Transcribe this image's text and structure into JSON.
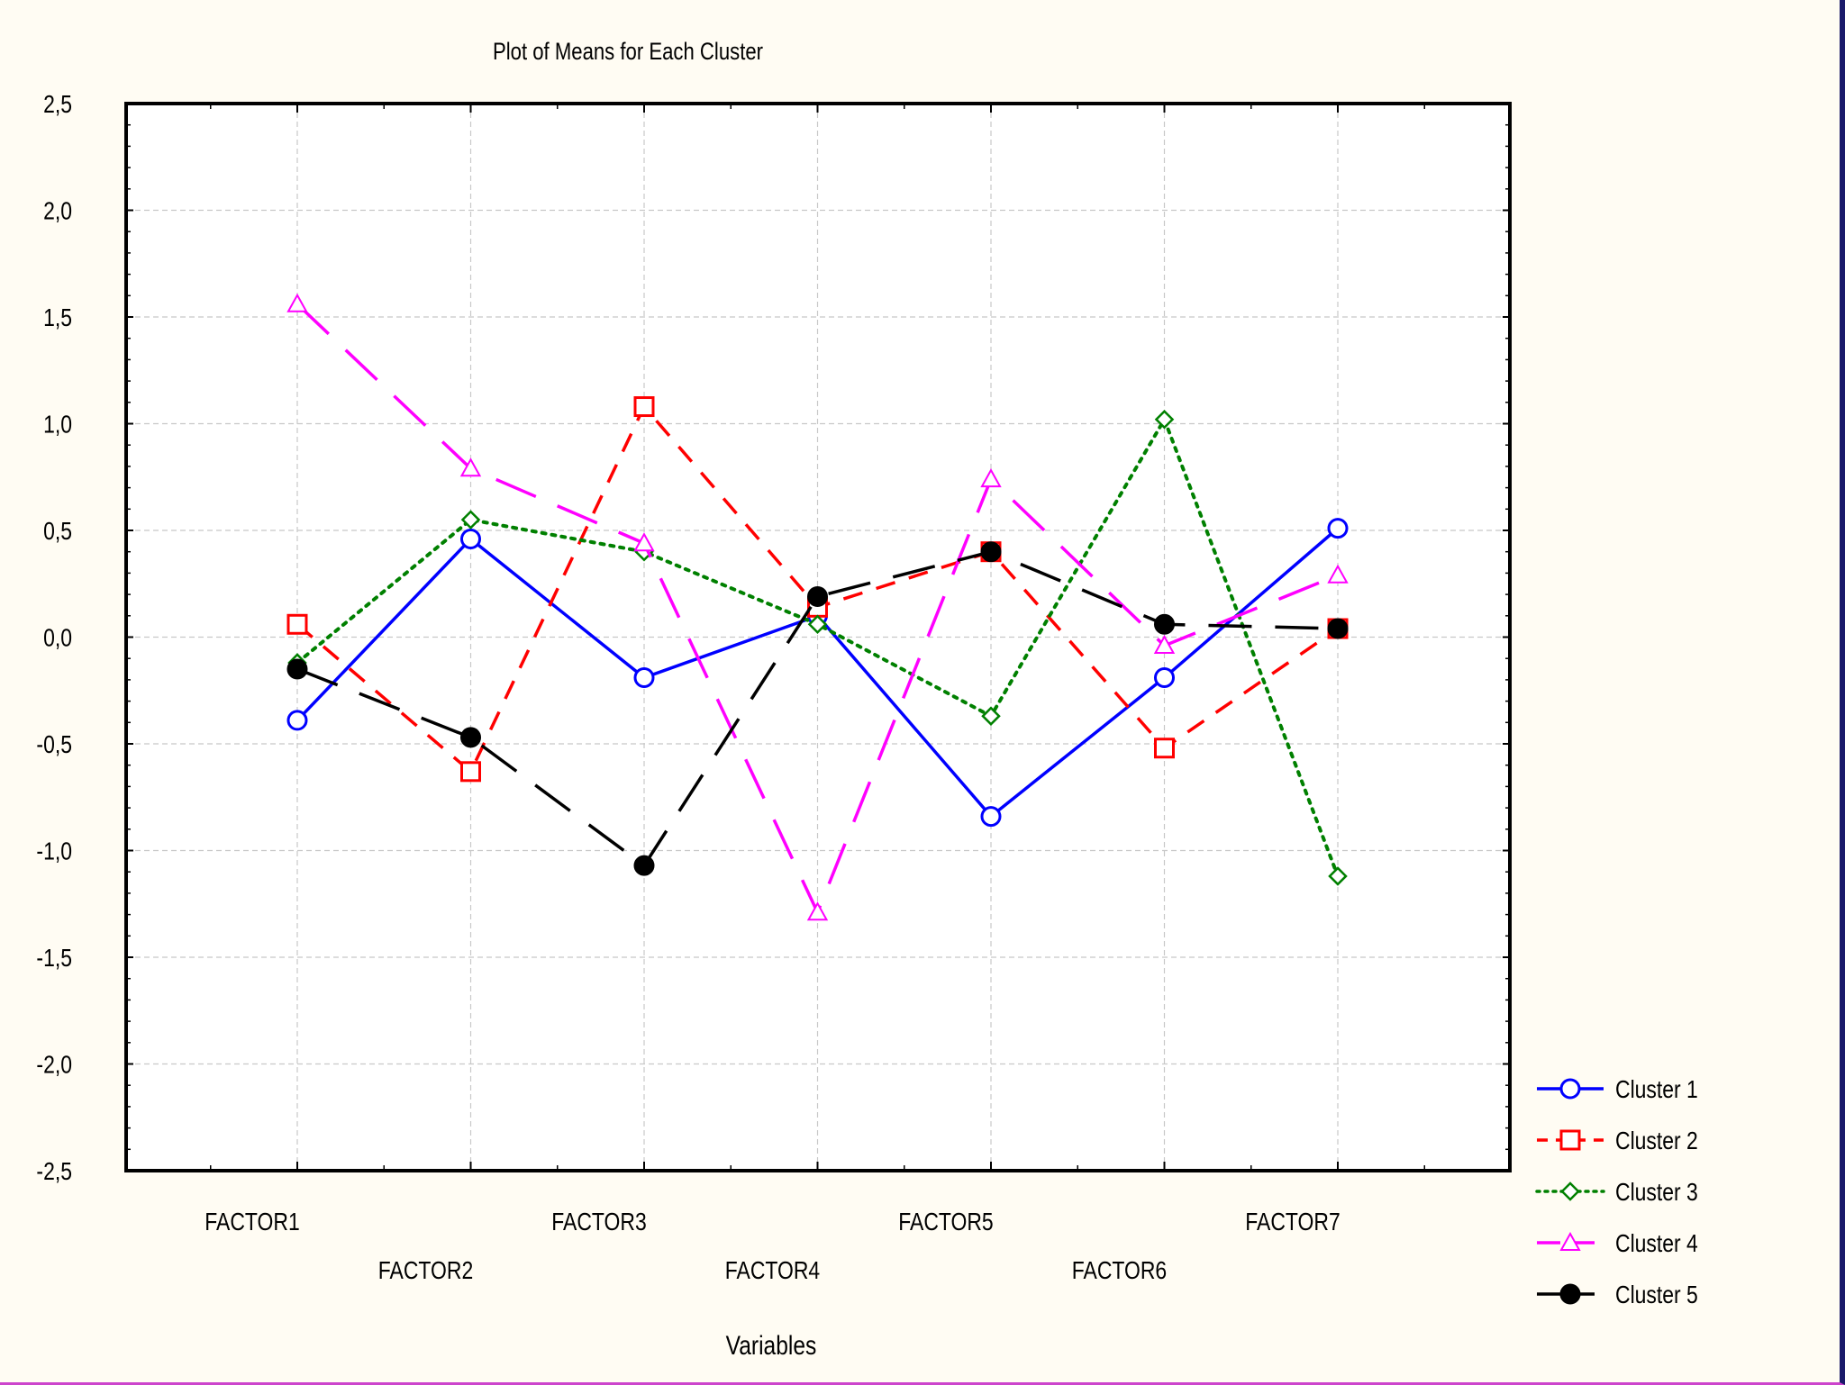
{
  "chart_data": {
    "type": "line",
    "title": "Plot of Means for Each Cluster",
    "xlabel": "Variables",
    "ylabel": "",
    "categories": [
      "FACTOR1",
      "FACTOR2",
      "FACTOR3",
      "FACTOR4",
      "FACTOR5",
      "FACTOR6",
      "FACTOR7"
    ],
    "ylim": [
      -2.5,
      2.5
    ],
    "yticks": [
      2.5,
      2.0,
      1.5,
      1.0,
      0.5,
      0.0,
      -0.5,
      -1.0,
      -1.5,
      -2.0,
      -2.5
    ],
    "ytick_labels": [
      "2,5",
      "2,0",
      "1,5",
      "1,0",
      "0,5",
      "0,0",
      "-0,5",
      "-1,0",
      "-1,5",
      "-2,0",
      "-2,5"
    ],
    "grid": true,
    "legend_position": "bottom-right",
    "series": [
      {
        "name": "Cluster 1",
        "color": "#0000ff",
        "marker": "open-circle",
        "line": "solid",
        "values": [
          -0.39,
          0.46,
          -0.19,
          0.1,
          -0.84,
          -0.19,
          0.51
        ]
      },
      {
        "name": "Cluster 2",
        "color": "#ff0000",
        "marker": "open-square",
        "line": "dashed",
        "values": [
          0.06,
          -0.63,
          1.08,
          0.14,
          0.4,
          -0.52,
          0.04
        ]
      },
      {
        "name": "Cluster 3",
        "color": "#008000",
        "marker": "open-diamond",
        "line": "dotted",
        "values": [
          -0.12,
          0.55,
          0.4,
          0.06,
          -0.37,
          1.02,
          -1.12
        ]
      },
      {
        "name": "Cluster 4",
        "color": "#ff00ff",
        "marker": "open-triangle",
        "line": "long-dash",
        "values": [
          1.56,
          0.79,
          0.44,
          -1.29,
          0.74,
          -0.04,
          0.29
        ]
      },
      {
        "name": "Cluster 5",
        "color": "#000000",
        "marker": "filled-circle",
        "line": "long-dash",
        "values": [
          -0.15,
          -0.47,
          -1.07,
          0.19,
          0.4,
          0.06,
          0.04
        ]
      }
    ]
  },
  "colors": {
    "background": "#fffcf3",
    "plot_background": "#ffffff",
    "grid": "#c8c8c8"
  }
}
